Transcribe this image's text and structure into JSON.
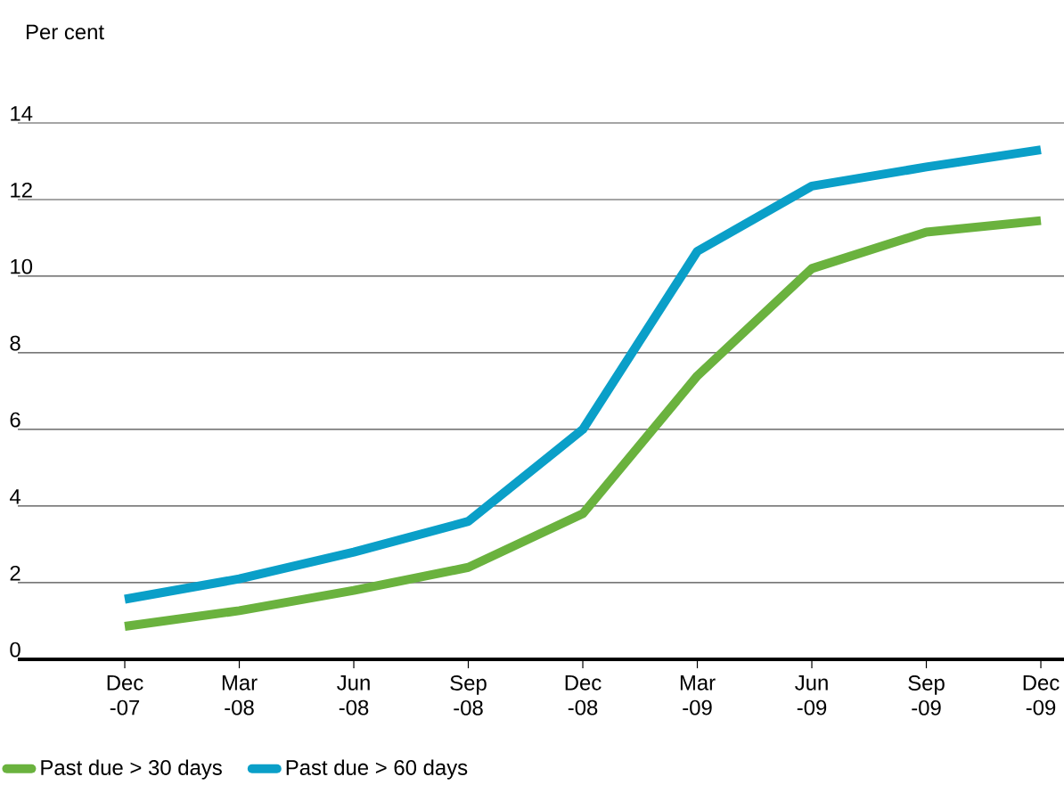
{
  "chart_data": {
    "type": "line",
    "ylabel": "Per cent",
    "categories": [
      "Dec -07",
      "Mar -08",
      "Jun -08",
      "Sep -08",
      "Dec -08",
      "Mar -09",
      "Jun -09",
      "Sep -09",
      "Dec -09"
    ],
    "series": [
      {
        "name": "Past due > 30 days",
        "color": "#6ab23e",
        "values": [
          0.86,
          1.27,
          1.8,
          2.4,
          3.8,
          7.4,
          10.2,
          11.15,
          11.45
        ]
      },
      {
        "name": "Past due > 60 days",
        "color": "#0a9fc8",
        "values": [
          1.57,
          2.1,
          2.8,
          3.6,
          6.0,
          10.65,
          12.35,
          12.85,
          13.3
        ]
      }
    ],
    "ylim": [
      0,
      14
    ],
    "yticks": [
      0,
      2,
      4,
      6,
      8,
      10,
      12,
      14
    ],
    "grid": "y",
    "legend": "bottom"
  }
}
